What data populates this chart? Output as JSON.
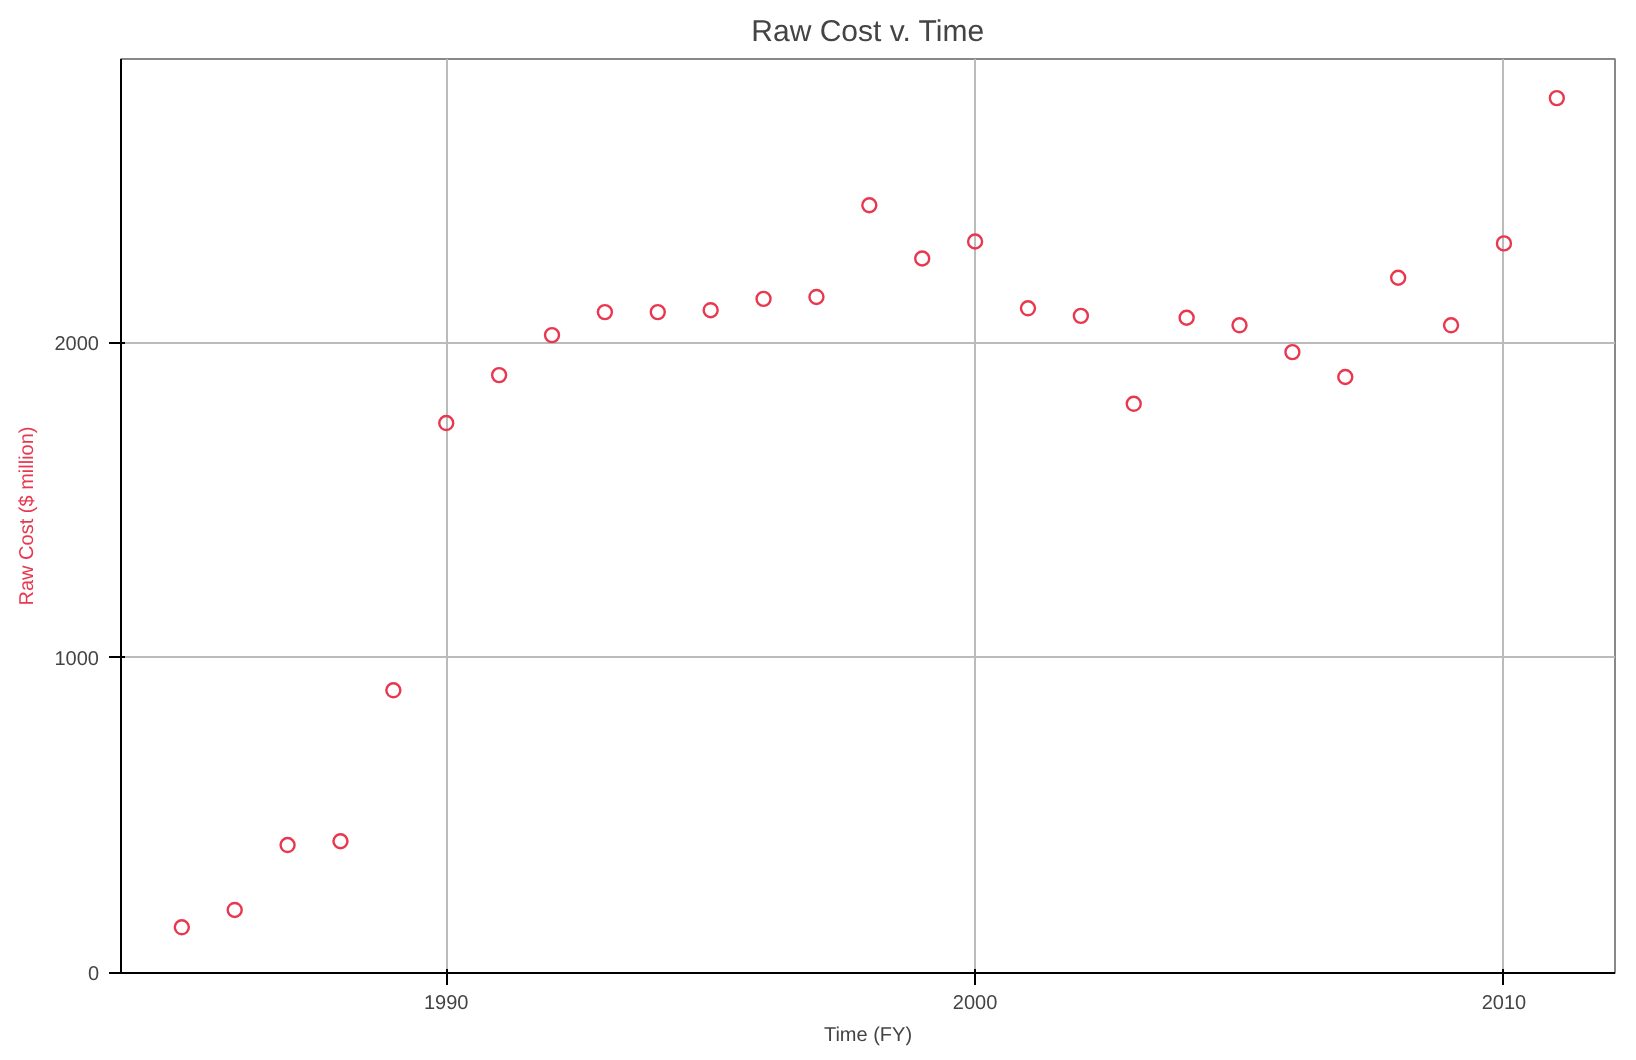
{
  "chart_data": {
    "type": "scatter",
    "title": "Raw Cost v. Time",
    "xlabel": "Time (FY)",
    "ylabel": "Raw Cost ($ million)",
    "x": [
      1985,
      1986,
      1987,
      1988,
      1989,
      1990,
      1991,
      1992,
      1993,
      1994,
      1995,
      1996,
      1997,
      1998,
      1999,
      2000,
      2001,
      2002,
      2003,
      2004,
      2005,
      2006,
      2007,
      2008,
      2009,
      2010,
      2011
    ],
    "series": [
      {
        "color": "#e8384f",
        "values": [
          145,
          200,
          406,
          418,
          897,
          1745,
          1897,
          2024,
          2097,
          2097,
          2103,
          2139,
          2145,
          2436,
          2267,
          2321,
          2109,
          2085,
          1806,
          2079,
          2055,
          1970,
          1891,
          2206,
          2055,
          2315,
          2776
        ]
      }
    ],
    "xlim": [
      1983.85,
      2012.1
    ],
    "ylim": [
      0,
      2900
    ],
    "xticks": [
      1990,
      2000,
      2010
    ],
    "yticks": [
      0,
      1000,
      2000
    ],
    "grid": true,
    "marker": "circle"
  }
}
